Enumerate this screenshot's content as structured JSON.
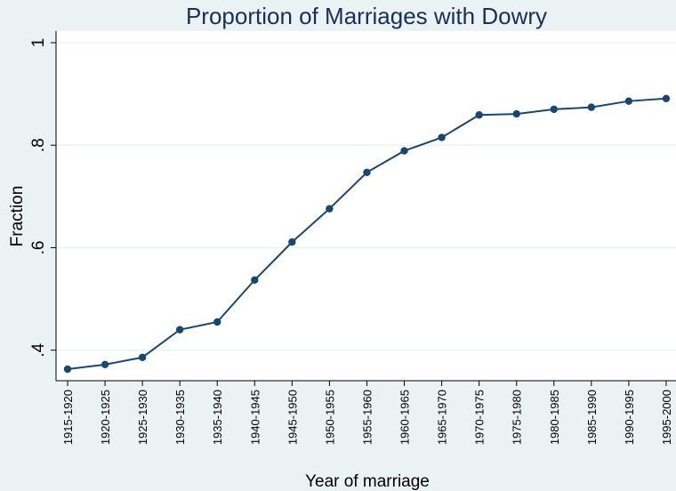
{
  "chart_data": {
    "type": "line",
    "title": "Proportion of Marriages with Dowry",
    "xlabel": "Year of marriage",
    "ylabel": "Fraction",
    "categories": [
      "1915-1920",
      "1920-1925",
      "1925-1930",
      "1930-1935",
      "1935-1940",
      "1940-1945",
      "1945-1950",
      "1950-1955",
      "1955-1960",
      "1960-1965",
      "1965-1970",
      "1970-1975",
      "1975-1980",
      "1980-1985",
      "1985-1990",
      "1990-1995",
      "1995-2000"
    ],
    "series": [
      {
        "name": "Fraction",
        "values": [
          0.363,
          0.372,
          0.386,
          0.44,
          0.455,
          0.537,
          0.611,
          0.676,
          0.747,
          0.789,
          0.815,
          0.859,
          0.861,
          0.87,
          0.874,
          0.886,
          0.891
        ]
      }
    ],
    "yticks": [
      0.4,
      0.6,
      0.8,
      1.0
    ],
    "ytick_labels": [
      ".4",
      ".6",
      ".8",
      "1"
    ],
    "ylim": [
      0.4,
      1.0
    ],
    "grid": true,
    "colors": {
      "line": "#1a476f",
      "background": "#eaf2f3",
      "plot": "#ffffff",
      "grid": "#eaf2f3"
    }
  }
}
